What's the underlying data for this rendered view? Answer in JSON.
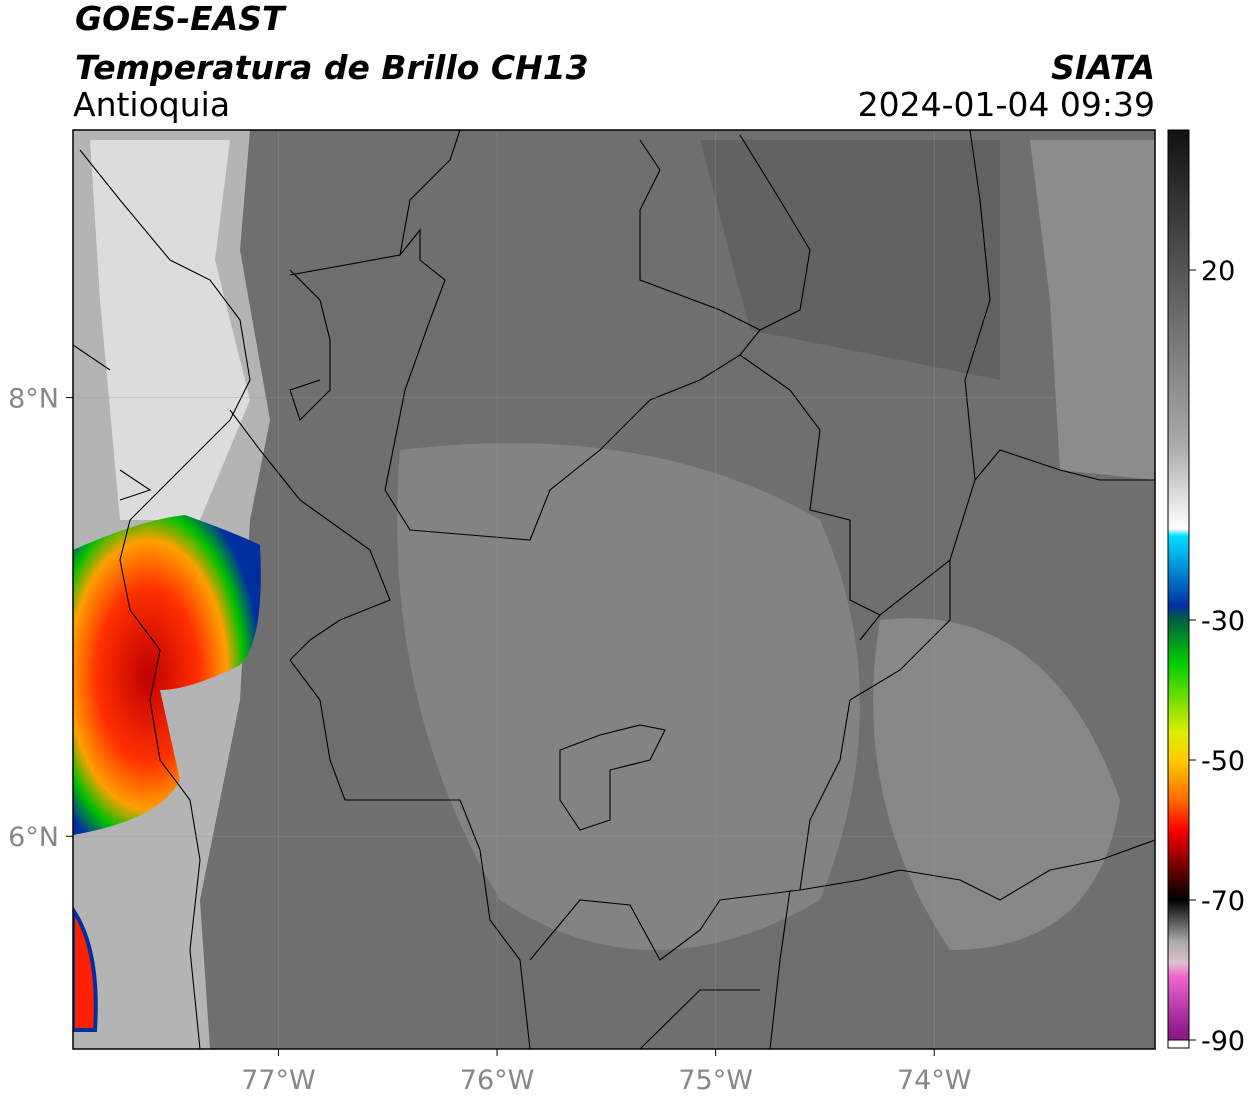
{
  "header": {
    "satellite": "GOES-EAST",
    "product": "Temperatura de Brillo CH13",
    "region": "Antioquia",
    "agency": "SIATA",
    "datetime": "2024-01-04 09:39"
  },
  "map": {
    "xlim": [
      -77.94,
      -72.99
    ],
    "ylim": [
      5.03,
      9.22
    ],
    "xticks": [
      {
        "value": -77,
        "label": "77°W"
      },
      {
        "value": -76,
        "label": "76°W"
      },
      {
        "value": -75,
        "label": "75°W"
      },
      {
        "value": -74,
        "label": "74°W"
      }
    ],
    "yticks": [
      {
        "value": 8,
        "label": "8°N"
      },
      {
        "value": 6,
        "label": "6°N"
      }
    ],
    "grid": true
  },
  "colorbar": {
    "range": [
      -90,
      40
    ],
    "ticks": [
      20,
      -30,
      -50,
      -70,
      -90
    ]
  }
}
